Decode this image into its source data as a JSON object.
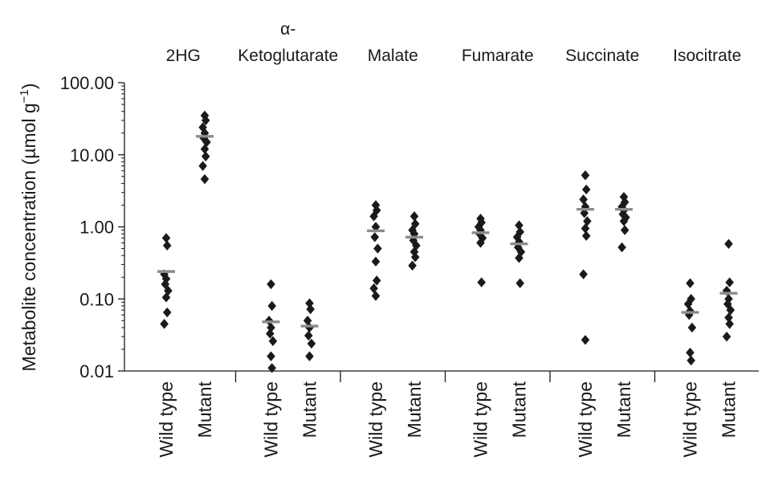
{
  "chart_data": {
    "type": "scatter",
    "title": "",
    "ylabel": "Metabolite concentration (µmol g",
    "ylabel_sup": "−1",
    "ylabel_close": ")",
    "yscale": "log",
    "ylim": [
      0.01,
      100
    ],
    "yticks": [
      {
        "value": 0.01,
        "label": "0.01"
      },
      {
        "value": 0.1,
        "label": "0.10"
      },
      {
        "value": 1,
        "label": "1.00"
      },
      {
        "value": 10,
        "label": "10.00"
      },
      {
        "value": 100,
        "label": "100.00"
      }
    ],
    "group_labels": [
      "Wild type",
      "Mutant"
    ],
    "colors": {
      "point": "#1a1a1a",
      "median": "#8c8c8c",
      "axis": "#1a1a1a"
    },
    "metabolites": [
      {
        "name_lines": [
          "2HG"
        ],
        "wild_type": {
          "median": 0.24,
          "values": [
            0.7,
            0.55,
            0.22,
            0.19,
            0.16,
            0.13,
            0.105,
            0.065,
            0.045
          ]
        },
        "mutant": {
          "median": 18,
          "values": [
            35,
            30,
            24,
            20,
            17,
            15,
            12,
            9.5,
            7,
            4.6
          ]
        }
      },
      {
        "name_lines": [
          "α-",
          "Ketoglutarate"
        ],
        "wild_type": {
          "median": 0.048,
          "values": [
            0.16,
            0.08,
            0.05,
            0.04,
            0.033,
            0.026,
            0.016,
            0.011
          ]
        },
        "mutant": {
          "median": 0.042,
          "values": [
            0.087,
            0.072,
            0.05,
            0.04,
            0.031,
            0.024,
            0.016
          ]
        }
      },
      {
        "name_lines": [
          "Malate"
        ],
        "wild_type": {
          "median": 0.88,
          "values": [
            2.0,
            1.7,
            1.4,
            1.0,
            0.72,
            0.5,
            0.33,
            0.18,
            0.14,
            0.11
          ]
        },
        "mutant": {
          "median": 0.72,
          "values": [
            1.4,
            1.1,
            0.9,
            0.8,
            0.65,
            0.55,
            0.45,
            0.38,
            0.29
          ]
        }
      },
      {
        "name_lines": [
          "Fumarate"
        ],
        "wild_type": {
          "median": 0.83,
          "values": [
            1.3,
            1.15,
            1.0,
            0.9,
            0.8,
            0.7,
            0.6,
            0.17
          ]
        },
        "mutant": {
          "median": 0.58,
          "values": [
            1.05,
            0.85,
            0.72,
            0.62,
            0.52,
            0.45,
            0.37,
            0.165
          ]
        }
      },
      {
        "name_lines": [
          "Succinate"
        ],
        "wild_type": {
          "median": 1.75,
          "values": [
            5.2,
            3.3,
            2.4,
            1.9,
            1.55,
            1.2,
            0.95,
            0.75,
            0.22,
            0.027
          ]
        },
        "mutant": {
          "median": 1.75,
          "values": [
            2.6,
            2.2,
            1.9,
            1.7,
            1.5,
            1.35,
            1.2,
            0.9,
            0.52
          ]
        }
      },
      {
        "name_lines": [
          "Isocitrate"
        ],
        "wild_type": {
          "median": 0.065,
          "values": [
            0.165,
            0.1,
            0.085,
            0.068,
            0.06,
            0.04,
            0.018,
            0.014
          ]
        },
        "mutant": {
          "median": 0.12,
          "values": [
            0.58,
            0.17,
            0.13,
            0.1,
            0.085,
            0.07,
            0.055,
            0.045,
            0.03
          ]
        }
      }
    ]
  }
}
